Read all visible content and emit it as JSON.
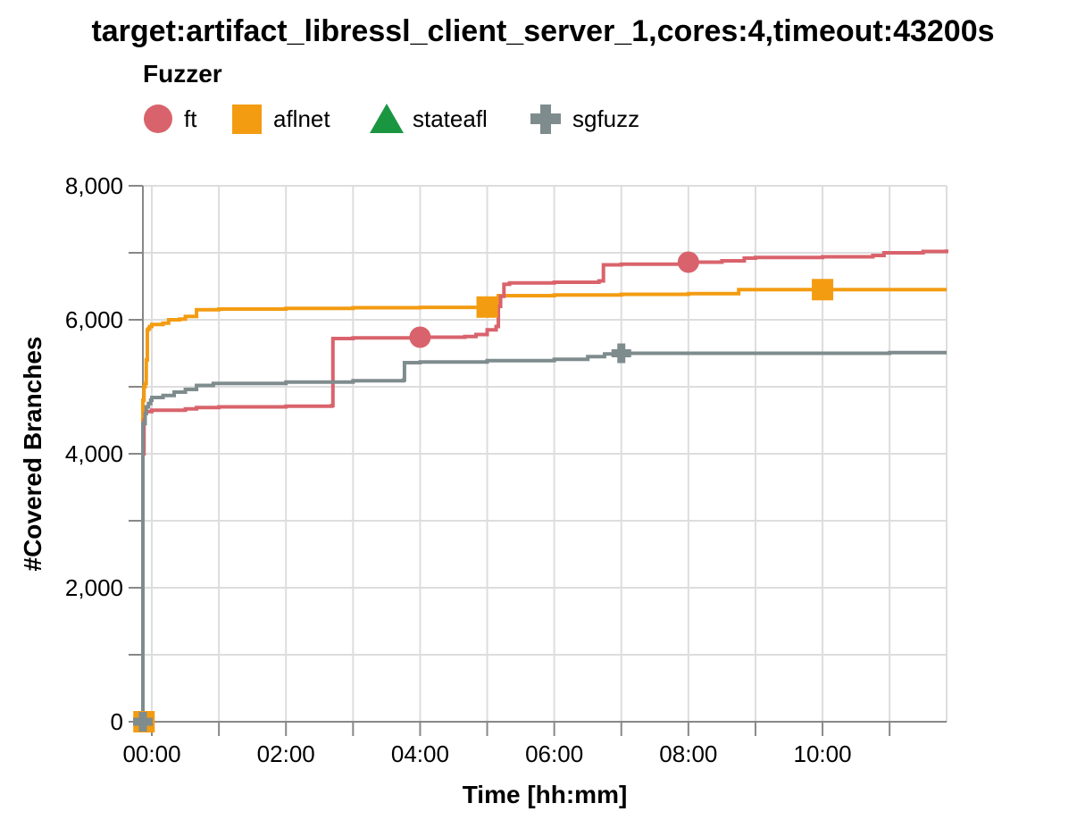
{
  "chart_data": {
    "type": "line",
    "title": "target:artifact_libressl_client_server_1,cores:4,timeout:43200s",
    "xlabel": "Time [hh:mm]",
    "ylabel": "#Covered Branches",
    "x_unit": "hh:mm",
    "xlim": [
      "-00:08",
      "11:51"
    ],
    "ylim": [
      0,
      8000
    ],
    "x_tick_labels": [
      "00:00",
      "02:00",
      "04:00",
      "06:00",
      "08:00",
      "10:00"
    ],
    "y_tick_labels": [
      "0",
      "2,000",
      "4,000",
      "6,000",
      "8,000"
    ],
    "grid": true,
    "legend": {
      "title": "Fuzzer",
      "placement": "top-left"
    },
    "series": [
      {
        "name": "ft",
        "color": "#d9636c",
        "marker": "circle",
        "x": [
          "-00:08",
          "-00:08",
          "-00:07",
          "-00:06",
          "-00:05",
          "00:00",
          "00:30",
          "00:40",
          "01:00",
          "02:00",
          "02:41",
          "02:42",
          "03:00",
          "04:00",
          "04:40",
          "04:50",
          "05:00",
          "05:08",
          "05:10",
          "05:12",
          "05:15",
          "05:20",
          "06:00",
          "06:40",
          "06:44",
          "07:00",
          "08:00",
          "08:30",
          "08:50",
          "09:00",
          "10:00",
          "10:45",
          "10:55",
          "11:30",
          "11:51"
        ],
        "y": [
          0,
          4000,
          4500,
          4600,
          4630,
          4650,
          4670,
          4690,
          4700,
          4710,
          4720,
          5720,
          5730,
          5740,
          5750,
          5780,
          5850,
          5900,
          6200,
          6350,
          6530,
          6550,
          6560,
          6580,
          6820,
          6830,
          6860,
          6880,
          6920,
          6930,
          6940,
          6960,
          7000,
          7020,
          7050
        ],
        "markers_at": [
          "04:00",
          "08:00"
        ]
      },
      {
        "name": "aflnet",
        "color": "#f39c12",
        "marker": "square",
        "x": [
          "-00:08",
          "-00:08",
          "-00:07",
          "-00:06",
          "-00:05",
          "-00:04",
          "-00:03",
          "-00:02",
          "00:00",
          "00:10",
          "00:15",
          "00:25",
          "00:30",
          "00:40",
          "01:00",
          "02:00",
          "03:00",
          "04:00",
          "05:00",
          "05:10",
          "06:00",
          "07:00",
          "08:00",
          "08:45",
          "09:00",
          "10:00",
          "11:00",
          "11:51"
        ],
        "y": [
          0,
          4800,
          5000,
          5050,
          5400,
          5850,
          5870,
          5900,
          5930,
          5950,
          6000,
          6010,
          6050,
          6150,
          6160,
          6170,
          6180,
          6185,
          6190,
          6360,
          6370,
          6380,
          6390,
          6450,
          6450,
          6450,
          6450,
          6450
        ],
        "markers_at": [
          "-00:07",
          "05:00",
          "10:00"
        ]
      },
      {
        "name": "stateafl",
        "color": "#1a9641",
        "marker": "triangle",
        "x": [],
        "y": [],
        "markers_at": []
      },
      {
        "name": "sgfuzz",
        "color": "#7f8c8d",
        "marker": "cross",
        "x": [
          "-00:08",
          "-00:08",
          "-00:06",
          "-00:05",
          "-00:03",
          "-00:01",
          "00:00",
          "00:10",
          "00:20",
          "00:30",
          "00:40",
          "00:55",
          "01:00",
          "02:00",
          "03:00",
          "03:45",
          "03:46",
          "04:00",
          "05:00",
          "06:00",
          "06:30",
          "06:45",
          "07:00",
          "08:00",
          "09:00",
          "10:00",
          "11:00",
          "11:51"
        ],
        "y": [
          0,
          4450,
          4600,
          4700,
          4750,
          4800,
          4840,
          4870,
          4920,
          4960,
          5020,
          5050,
          5050,
          5070,
          5090,
          5100,
          5360,
          5370,
          5390,
          5410,
          5450,
          5490,
          5500,
          5500,
          5500,
          5500,
          5510,
          5510
        ],
        "markers_at": [
          "-00:08",
          "07:00"
        ]
      }
    ]
  }
}
